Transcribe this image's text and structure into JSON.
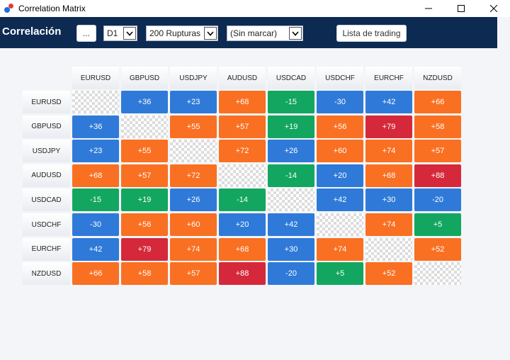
{
  "window": {
    "title": "Correlation Matrix"
  },
  "toolbar": {
    "brand": "Correlación",
    "dots_label": "...",
    "timeframe": "D1",
    "breakouts": "200 Rupturas",
    "marked": "(Sin marcar)",
    "trading_list_label": "Lista de trading"
  },
  "colors": {
    "toolbar_bg": "#0d2a52",
    "blue": "#2f7ad8",
    "orange": "#f97022",
    "green": "#13a660",
    "red": "#d5293b"
  },
  "matrix": {
    "symbols": [
      "EURUSD",
      "GBPUSD",
      "USDJPY",
      "AUDUSD",
      "USDCAD",
      "USDCHF",
      "EURCHF",
      "NZDUSD"
    ],
    "rows": [
      {
        "symbol": "EURUSD",
        "cells": [
          {
            "value": "",
            "color": "diag"
          },
          {
            "value": "+36",
            "color": "blue"
          },
          {
            "value": "+23",
            "color": "blue"
          },
          {
            "value": "+68",
            "color": "orange"
          },
          {
            "value": "-15",
            "color": "green"
          },
          {
            "value": "-30",
            "color": "blue"
          },
          {
            "value": "+42",
            "color": "blue"
          },
          {
            "value": "+66",
            "color": "orange"
          }
        ]
      },
      {
        "symbol": "GBPUSD",
        "cells": [
          {
            "value": "+36",
            "color": "blue"
          },
          {
            "value": "",
            "color": "diag"
          },
          {
            "value": "+55",
            "color": "orange"
          },
          {
            "value": "+57",
            "color": "orange"
          },
          {
            "value": "+19",
            "color": "green"
          },
          {
            "value": "+56",
            "color": "orange"
          },
          {
            "value": "+79",
            "color": "red"
          },
          {
            "value": "+58",
            "color": "orange"
          }
        ]
      },
      {
        "symbol": "USDJPY",
        "cells": [
          {
            "value": "+23",
            "color": "blue"
          },
          {
            "value": "+55",
            "color": "orange"
          },
          {
            "value": "",
            "color": "diag"
          },
          {
            "value": "+72",
            "color": "orange"
          },
          {
            "value": "+26",
            "color": "blue"
          },
          {
            "value": "+60",
            "color": "orange"
          },
          {
            "value": "+74",
            "color": "orange"
          },
          {
            "value": "+57",
            "color": "orange"
          }
        ]
      },
      {
        "symbol": "AUDUSD",
        "cells": [
          {
            "value": "+68",
            "color": "orange"
          },
          {
            "value": "+57",
            "color": "orange"
          },
          {
            "value": "+72",
            "color": "orange"
          },
          {
            "value": "",
            "color": "diag"
          },
          {
            "value": "-14",
            "color": "green"
          },
          {
            "value": "+20",
            "color": "blue"
          },
          {
            "value": "+68",
            "color": "orange"
          },
          {
            "value": "+88",
            "color": "red"
          }
        ]
      },
      {
        "symbol": "USDCAD",
        "cells": [
          {
            "value": "-15",
            "color": "green"
          },
          {
            "value": "+19",
            "color": "green"
          },
          {
            "value": "+26",
            "color": "blue"
          },
          {
            "value": "-14",
            "color": "green"
          },
          {
            "value": "",
            "color": "diag"
          },
          {
            "value": "+42",
            "color": "blue"
          },
          {
            "value": "+30",
            "color": "blue"
          },
          {
            "value": "-20",
            "color": "blue"
          }
        ]
      },
      {
        "symbol": "USDCHF",
        "cells": [
          {
            "value": "-30",
            "color": "blue"
          },
          {
            "value": "+56",
            "color": "orange"
          },
          {
            "value": "+60",
            "color": "orange"
          },
          {
            "value": "+20",
            "color": "blue"
          },
          {
            "value": "+42",
            "color": "blue"
          },
          {
            "value": "",
            "color": "diag"
          },
          {
            "value": "+74",
            "color": "orange"
          },
          {
            "value": "+5",
            "color": "green"
          }
        ]
      },
      {
        "symbol": "EURCHF",
        "cells": [
          {
            "value": "+42",
            "color": "blue"
          },
          {
            "value": "+79",
            "color": "red"
          },
          {
            "value": "+74",
            "color": "orange"
          },
          {
            "value": "+68",
            "color": "orange"
          },
          {
            "value": "+30",
            "color": "blue"
          },
          {
            "value": "+74",
            "color": "orange"
          },
          {
            "value": "",
            "color": "diag"
          },
          {
            "value": "+52",
            "color": "orange"
          }
        ]
      },
      {
        "symbol": "NZDUSD",
        "cells": [
          {
            "value": "+66",
            "color": "orange"
          },
          {
            "value": "+58",
            "color": "orange"
          },
          {
            "value": "+57",
            "color": "orange"
          },
          {
            "value": "+88",
            "color": "red"
          },
          {
            "value": "-20",
            "color": "blue"
          },
          {
            "value": "+5",
            "color": "green"
          },
          {
            "value": "+52",
            "color": "orange"
          },
          {
            "value": "",
            "color": "diag"
          }
        ]
      }
    ]
  }
}
